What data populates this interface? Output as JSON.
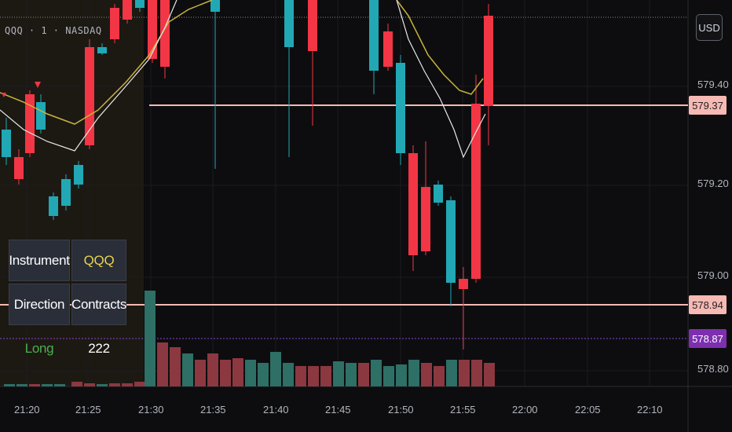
{
  "symbol_line": "QQQ · 1 · NASDAQ",
  "currency_button": "USD",
  "price_axis": {
    "labels": [
      "579.40",
      "579.20",
      "579.00",
      "578.80"
    ],
    "tags": [
      {
        "label": "579.37",
        "bg": "#f7b9b3",
        "fg": "#222222"
      },
      {
        "label": "578.94",
        "bg": "#f7b9b3",
        "fg": "#222222"
      },
      {
        "label": "578.87",
        "bg": "#7e2fb0",
        "fg": "#ffffff"
      }
    ]
  },
  "time_axis": {
    "labels": [
      "21:20",
      "21:25",
      "21:30",
      "21:35",
      "21:40",
      "21:45",
      "21:50",
      "21:55",
      "22:00",
      "22:05",
      "22:10"
    ]
  },
  "info_table": {
    "instrument_label": "Instrument",
    "instrument_value": "QQQ",
    "direction_label": "Direction",
    "contracts_label": "Contracts",
    "direction_value": "Long",
    "contracts_value": "222"
  },
  "colors": {
    "up": "#22a8b5",
    "down": "#f23645",
    "ma_fast": "#e8e8e8",
    "ma_slow": "#c8b43a",
    "level_line": "#f7b9b3",
    "purple_line": "#8e44d6",
    "session_shade": "#2a2418",
    "vol_up": "#2e6f66",
    "vol_down": "#8c3840",
    "long_text": "#4caf50",
    "qqq_text": "#e8d44a"
  },
  "chart_data": {
    "type": "candlestick",
    "time_axis": [
      "21:20",
      "21:25",
      "21:30",
      "21:35",
      "21:40",
      "21:45",
      "21:50",
      "21:55",
      "22:00",
      "22:05",
      "22:10"
    ],
    "price_axis": [
      "579.40",
      "579.20",
      "579.00",
      "578.80"
    ],
    "horizontal_levels": [
      579.37,
      578.94,
      578.87
    ]
  }
}
